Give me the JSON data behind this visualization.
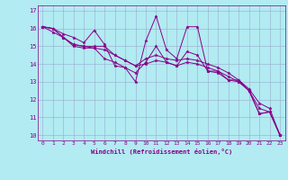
{
  "xlabel": "Windchill (Refroidissement éolien,°C)",
  "bg_color": "#b2ebf2",
  "line_color": "#880088",
  "grid_color": "#99aacc",
  "xlim": [
    -0.5,
    23.5
  ],
  "ylim": [
    9.7,
    17.3
  ],
  "yticks": [
    10,
    11,
    12,
    13,
    14,
    15,
    16,
    17
  ],
  "xticks": [
    0,
    1,
    2,
    3,
    4,
    5,
    6,
    7,
    8,
    9,
    10,
    11,
    12,
    13,
    14,
    15,
    16,
    17,
    18,
    19,
    20,
    21,
    22,
    23
  ],
  "series": [
    [
      16.1,
      16.0,
      15.7,
      15.5,
      15.2,
      15.9,
      15.1,
      13.9,
      13.8,
      13.0,
      15.3,
      16.7,
      14.8,
      14.3,
      16.1,
      16.1,
      13.6,
      13.6,
      13.1,
      13.1,
      12.5,
      11.2,
      11.3,
      10.0
    ],
    [
      16.1,
      16.0,
      15.5,
      15.1,
      15.0,
      14.9,
      14.3,
      14.1,
      13.8,
      13.5,
      14.1,
      15.0,
      14.1,
      13.9,
      14.7,
      14.5,
      13.6,
      13.5,
      13.1,
      13.0,
      12.5,
      11.2,
      11.3,
      10.0
    ],
    [
      16.1,
      16.0,
      15.5,
      15.1,
      15.0,
      15.0,
      15.0,
      14.5,
      14.2,
      13.9,
      14.3,
      14.5,
      14.3,
      14.2,
      14.3,
      14.2,
      14.0,
      13.8,
      13.5,
      13.1,
      12.6,
      11.8,
      11.5,
      10.0
    ],
    [
      16.1,
      15.8,
      15.5,
      15.0,
      14.9,
      14.9,
      14.8,
      14.5,
      14.2,
      13.9,
      14.0,
      14.2,
      14.1,
      13.9,
      14.1,
      14.0,
      13.8,
      13.6,
      13.3,
      13.0,
      12.5,
      11.5,
      11.3,
      10.0
    ]
  ]
}
